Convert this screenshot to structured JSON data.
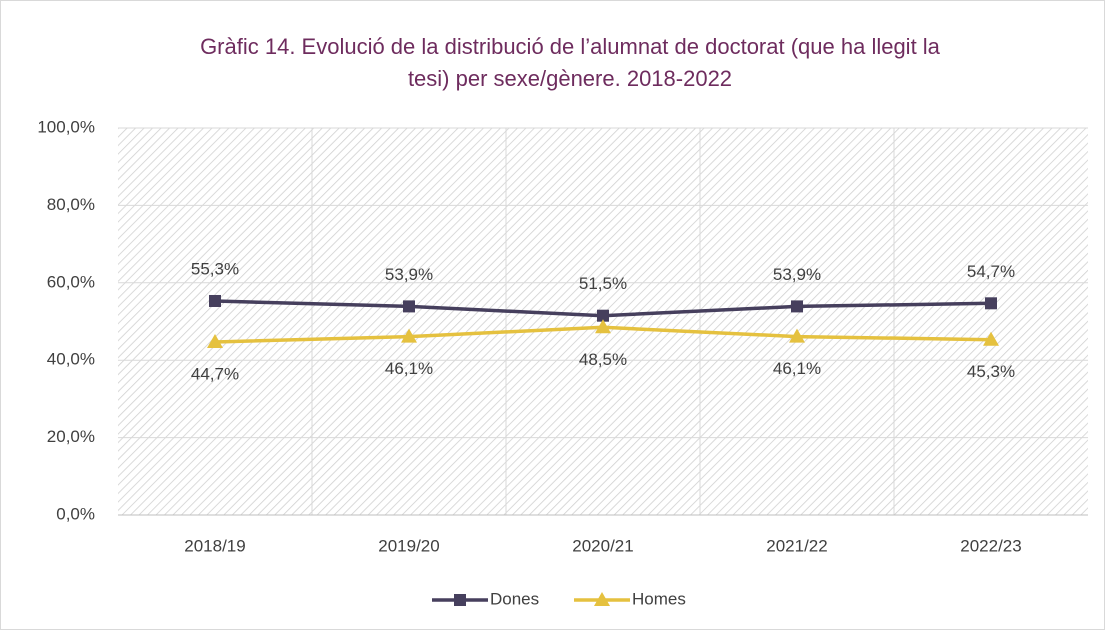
{
  "chart_data": {
    "type": "line",
    "title": [
      "Gràfic 14. Evolució de la distribució de l’alumnat de doctorat (que ha llegit la",
      "tesi) per sexe/gènere. 2018-2022"
    ],
    "categories": [
      "2018/19",
      "2019/20",
      "2020/21",
      "2021/22",
      "2022/23"
    ],
    "series": [
      {
        "name": "Dones",
        "color": "#463f5d",
        "marker": "square",
        "values": [
          55.3,
          53.9,
          51.5,
          53.9,
          54.7
        ],
        "value_labels": [
          "55,3%",
          "53,9%",
          "51,5%",
          "53,9%",
          "54,7%"
        ]
      },
      {
        "name": "Homes",
        "color": "#e5c13f",
        "marker": "triangle",
        "values": [
          44.7,
          46.1,
          48.5,
          46.1,
          45.3
        ],
        "value_labels": [
          "44,7%",
          "46,1%",
          "48,5%",
          "46,1%",
          "45,3%"
        ]
      }
    ],
    "ylim": [
      0,
      100
    ],
    "yticks": [
      {
        "value": 0,
        "label": "0,0%"
      },
      {
        "value": 20,
        "label": "20,0%"
      },
      {
        "value": 40,
        "label": "40,0%"
      },
      {
        "value": 60,
        "label": "60,0%"
      },
      {
        "value": 80,
        "label": "80,0%"
      },
      {
        "value": 100,
        "label": "100,0%"
      }
    ],
    "grid": true,
    "legend": "bottom"
  }
}
